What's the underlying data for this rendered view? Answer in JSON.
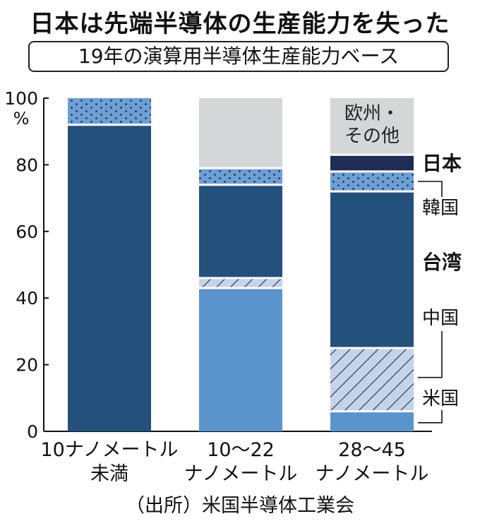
{
  "chart_data": {
    "type": "bar",
    "stacked": true,
    "title": "日本は先端半導体の生産能力を失った",
    "subtitle": "19年の演算用半導体生産能力ベース",
    "source": "（出所）米国半導体工業会",
    "y_unit": "%",
    "ylim": [
      0,
      100
    ],
    "y_ticks": [
      "0",
      "20",
      "40",
      "60",
      "80",
      "100"
    ],
    "categories": [
      [
        "10ナノメートル",
        "未満"
      ],
      [
        "10～22",
        "ナノメートル"
      ],
      [
        "28～45",
        "ナノメートル"
      ]
    ],
    "series": [
      {
        "name": "米国",
        "pattern": "solid",
        "color": "#5b93cd",
        "values": [
          0,
          43,
          6
        ]
      },
      {
        "name": "中国",
        "pattern": "hatch",
        "color": "#c6d4ea",
        "values": [
          0,
          3,
          19
        ]
      },
      {
        "name": "台湾",
        "pattern": "solid",
        "color": "#24507c",
        "values": [
          92,
          28,
          47
        ]
      },
      {
        "name": "韓国",
        "pattern": "dots",
        "color": "#6e9fd4",
        "values": [
          8,
          5,
          6
        ]
      },
      {
        "name": "日本",
        "pattern": "solid",
        "color": "#1f2c55",
        "values": [
          0,
          0,
          5
        ]
      },
      {
        "name": "欧州・その他",
        "pattern": "solid",
        "color": "#d4d6d8",
        "values": [
          0,
          21,
          17
        ]
      }
    ],
    "legend": {
      "placement": "right",
      "labels": {
        "eu": [
          "欧州・",
          "その他"
        ],
        "japan": "日本",
        "korea": "韓国",
        "taiwan": "台湾",
        "china": "中国",
        "us": "米国"
      }
    },
    "grid": false
  }
}
